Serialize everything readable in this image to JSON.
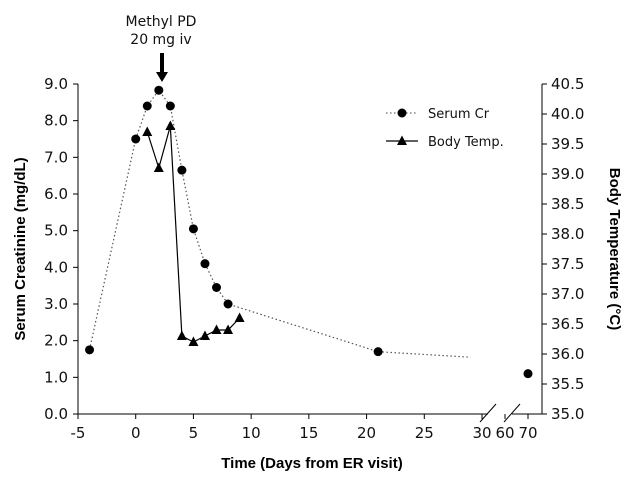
{
  "chart_data": {
    "type": "line",
    "xlabel": "Time (Days from ER visit)",
    "ylabel_left": "Serum Creatinine (mg/dL)",
    "ylabel_right": "Body Temperature (°C)",
    "x_ticks": [
      "-5",
      "0",
      "5",
      "10",
      "15",
      "20",
      "25",
      "30",
      "60",
      "70"
    ],
    "y_left_ticks": [
      "0.0",
      "1.0",
      "2.0",
      "3.0",
      "4.0",
      "5.0",
      "6.0",
      "7.0",
      "8.0",
      "9.0"
    ],
    "y_right_ticks": [
      "35.0",
      "35.5",
      "36.0",
      "36.5",
      "37.0",
      "37.5",
      "38.0",
      "38.5",
      "39.0",
      "39.5",
      "40.0",
      "40.5"
    ],
    "y_left_range": [
      0,
      9
    ],
    "y_right_range": [
      35,
      40.5
    ],
    "axis_break": "between 30 and 60",
    "annotation": {
      "line1": "Methyl PD",
      "line2": "20 mg iv",
      "x": 2
    },
    "legend_position": "top-right",
    "series": [
      {
        "name": "Serum Cr",
        "axis": "left",
        "marker": "circle",
        "line": "dotted",
        "points": [
          {
            "x": -4,
            "y": 1.75
          },
          {
            "x": 0,
            "y": 7.5
          },
          {
            "x": 1,
            "y": 8.4
          },
          {
            "x": 2,
            "y": 8.83
          },
          {
            "x": 3,
            "y": 8.4
          },
          {
            "x": 4,
            "y": 6.65
          },
          {
            "x": 5,
            "y": 5.05
          },
          {
            "x": 6,
            "y": 4.1
          },
          {
            "x": 7,
            "y": 3.45
          },
          {
            "x": 8,
            "y": 3.0
          },
          {
            "x": 21,
            "y": 1.7
          },
          {
            "x": 70,
            "y": 1.1
          }
        ],
        "trend_extension": {
          "x": 29,
          "y": 1.55
        }
      },
      {
        "name": "Body Temp.",
        "axis": "right",
        "marker": "triangle",
        "line": "solid",
        "points": [
          {
            "x": 1,
            "y": 39.7
          },
          {
            "x": 2,
            "y": 39.1
          },
          {
            "x": 3,
            "y": 39.8
          },
          {
            "x": 4,
            "y": 36.3
          },
          {
            "x": 5,
            "y": 36.2
          },
          {
            "x": 6,
            "y": 36.3
          },
          {
            "x": 7,
            "y": 36.4
          },
          {
            "x": 8,
            "y": 36.4
          },
          {
            "x": 9,
            "y": 36.6
          }
        ]
      }
    ]
  }
}
